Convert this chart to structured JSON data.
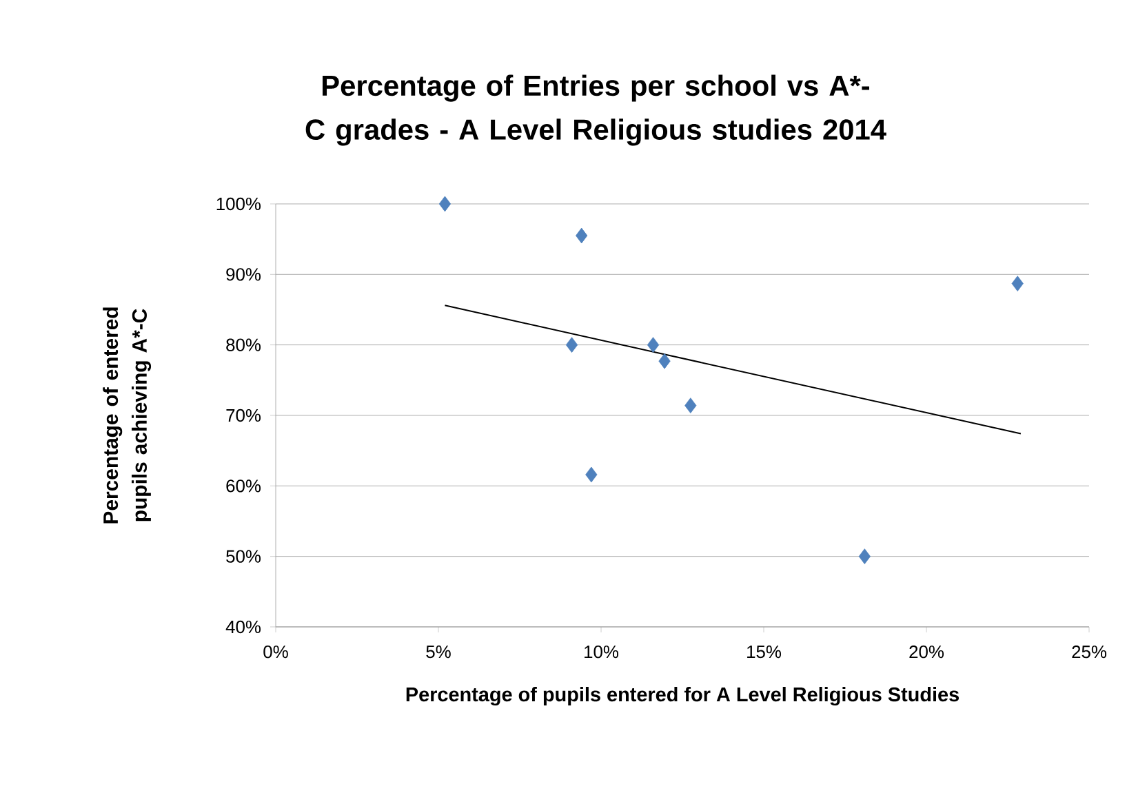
{
  "chart_data": {
    "type": "scatter",
    "title": "Percentage of Entries per school vs A*-C grades - A Level Religious studies 2014",
    "xlabel": "Percentage of pupils entered for A Level Religious Studies",
    "ylabel": "Percentage of entered pupils achieving A*-C",
    "series": [
      {
        "color": "#4f81bd",
        "marker": "diamond",
        "x": [
          5.2,
          9.4,
          22.8,
          9.1,
          11.6,
          11.95,
          12.75,
          9.7,
          18.1
        ],
        "values": [
          100,
          95.5,
          88.7,
          80,
          80,
          77.7,
          71.4,
          61.6,
          50
        ]
      },
      {
        "type": "line",
        "color": "#000000",
        "marker": "none",
        "x": [
          5.2,
          22.9
        ],
        "values": [
          85.6,
          67.4
        ]
      }
    ],
    "xlim": [
      0,
      25
    ],
    "ylim": [
      40,
      100
    ],
    "xticks": [
      {
        "value": 0,
        "label": "0%"
      },
      {
        "value": 5,
        "label": "5%"
      },
      {
        "value": 10,
        "label": "10%"
      },
      {
        "value": 15,
        "label": "15%"
      },
      {
        "value": 20,
        "label": "20%"
      },
      {
        "value": 25,
        "label": "25%"
      }
    ],
    "yticks": [
      {
        "value": 40,
        "label": "40%"
      },
      {
        "value": 50,
        "label": "50%"
      },
      {
        "value": 60,
        "label": "60%"
      },
      {
        "value": 70,
        "label": "70%"
      },
      {
        "value": 80,
        "label": "80%"
      },
      {
        "value": 90,
        "label": "90%"
      },
      {
        "value": 100,
        "label": "100%"
      }
    ],
    "grid": "y"
  }
}
